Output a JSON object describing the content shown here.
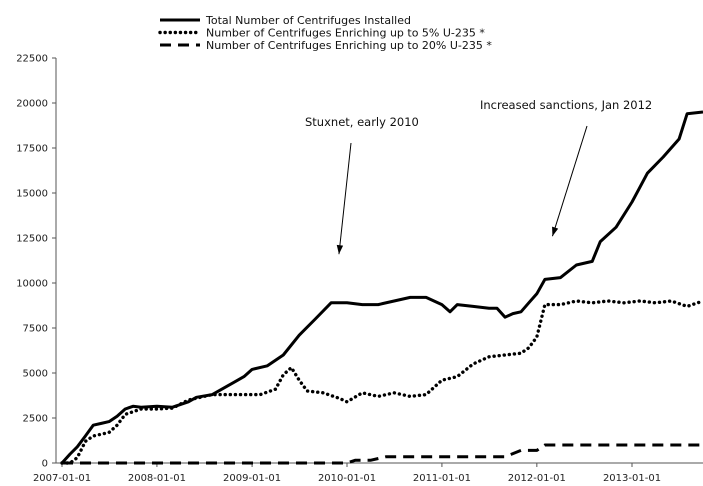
{
  "chart_data": {
    "type": "line",
    "title": "",
    "xlabel": "",
    "ylabel": "",
    "xlim": [
      "2007-01-01",
      "2013-10-01"
    ],
    "ylim": [
      0,
      22500
    ],
    "grid": false,
    "legend_position": "top-left",
    "x_tick_labels": [
      "2007-01-01",
      "2008-01-01",
      "2009-01-01",
      "2010-01-01",
      "2011-01-01",
      "2012-01-01",
      "2013-01-01"
    ],
    "y_tick_labels": [
      "0",
      "2500",
      "5000",
      "7500",
      "10000",
      "12500",
      "15000",
      "17500",
      "20000",
      "22500"
    ],
    "y_ticks": [
      0,
      2500,
      5000,
      7500,
      10000,
      12500,
      15000,
      17500,
      20000,
      22500
    ],
    "series": [
      {
        "name": "Total Number of Centrifuges Installed",
        "style": "solid",
        "color": "#000000",
        "points": [
          [
            "2007-01-01",
            0
          ],
          [
            "2007-02-01",
            500
          ],
          [
            "2007-03-01",
            900
          ],
          [
            "2007-04-01",
            1500
          ],
          [
            "2007-05-01",
            2100
          ],
          [
            "2007-06-01",
            2200
          ],
          [
            "2007-07-01",
            2300
          ],
          [
            "2007-08-01",
            2600
          ],
          [
            "2007-09-01",
            3000
          ],
          [
            "2007-10-01",
            3150
          ],
          [
            "2007-11-01",
            3100
          ],
          [
            "2008-01-01",
            3150
          ],
          [
            "2008-03-01",
            3100
          ],
          [
            "2008-05-01",
            3400
          ],
          [
            "2008-06-01",
            3650
          ],
          [
            "2008-08-01",
            3800
          ],
          [
            "2008-10-01",
            4300
          ],
          [
            "2008-12-01",
            4800
          ],
          [
            "2009-01-01",
            5200
          ],
          [
            "2009-03-01",
            5400
          ],
          [
            "2009-05-01",
            6000
          ],
          [
            "2009-07-01",
            7100
          ],
          [
            "2009-09-01",
            8000
          ],
          [
            "2009-11-01",
            8900
          ],
          [
            "2010-01-01",
            8900
          ],
          [
            "2010-03-01",
            8800
          ],
          [
            "2010-05-01",
            8800
          ],
          [
            "2010-07-01",
            9000
          ],
          [
            "2010-09-01",
            9200
          ],
          [
            "2010-11-01",
            9200
          ],
          [
            "2011-01-01",
            8800
          ],
          [
            "2011-02-01",
            8400
          ],
          [
            "2011-03-01",
            8800
          ],
          [
            "2011-05-01",
            8700
          ],
          [
            "2011-07-01",
            8600
          ],
          [
            "2011-08-01",
            8600
          ],
          [
            "2011-09-01",
            8100
          ],
          [
            "2011-10-01",
            8300
          ],
          [
            "2011-11-01",
            8400
          ],
          [
            "2011-12-01",
            8900
          ],
          [
            "2012-01-01",
            9400
          ],
          [
            "2012-02-01",
            10200
          ],
          [
            "2012-04-01",
            10300
          ],
          [
            "2012-06-01",
            11000
          ],
          [
            "2012-08-01",
            11200
          ],
          [
            "2012-09-01",
            12300
          ],
          [
            "2012-11-01",
            13100
          ],
          [
            "2013-01-01",
            14500
          ],
          [
            "2013-03-01",
            16100
          ],
          [
            "2013-05-01",
            17000
          ],
          [
            "2013-07-01",
            18000
          ],
          [
            "2013-08-01",
            19400
          ],
          [
            "2013-10-01",
            19500
          ]
        ]
      },
      {
        "name": "Number of Centrifuges Enriching up to 5% U-235 *",
        "style": "dotted",
        "color": "#000000",
        "points": [
          [
            "2007-01-01",
            0
          ],
          [
            "2007-02-01",
            0
          ],
          [
            "2007-03-01",
            300
          ],
          [
            "2007-04-01",
            1200
          ],
          [
            "2007-05-01",
            1500
          ],
          [
            "2007-06-01",
            1600
          ],
          [
            "2007-07-01",
            1700
          ],
          [
            "2007-08-01",
            2100
          ],
          [
            "2007-09-01",
            2700
          ],
          [
            "2007-11-01",
            3000
          ],
          [
            "2008-01-01",
            3000
          ],
          [
            "2008-03-01",
            3050
          ],
          [
            "2008-05-01",
            3500
          ],
          [
            "2008-08-01",
            3800
          ],
          [
            "2008-11-01",
            3800
          ],
          [
            "2009-02-01",
            3800
          ],
          [
            "2009-04-01",
            4100
          ],
          [
            "2009-05-01",
            4900
          ],
          [
            "2009-06-01",
            5300
          ],
          [
            "2009-07-01",
            4600
          ],
          [
            "2009-08-01",
            4000
          ],
          [
            "2009-10-01",
            3900
          ],
          [
            "2009-12-01",
            3600
          ],
          [
            "2010-01-01",
            3400
          ],
          [
            "2010-03-01",
            3900
          ],
          [
            "2010-05-01",
            3700
          ],
          [
            "2010-07-01",
            3900
          ],
          [
            "2010-09-01",
            3700
          ],
          [
            "2010-11-01",
            3800
          ],
          [
            "2011-01-01",
            4600
          ],
          [
            "2011-03-01",
            4800
          ],
          [
            "2011-05-01",
            5500
          ],
          [
            "2011-07-01",
            5900
          ],
          [
            "2011-09-01",
            6000
          ],
          [
            "2011-11-01",
            6100
          ],
          [
            "2011-12-01",
            6400
          ],
          [
            "2012-01-01",
            7000
          ],
          [
            "2012-02-01",
            8800
          ],
          [
            "2012-04-01",
            8800
          ],
          [
            "2012-06-01",
            9000
          ],
          [
            "2012-08-01",
            8900
          ],
          [
            "2012-10-01",
            9000
          ],
          [
            "2012-12-01",
            8900
          ],
          [
            "2013-02-01",
            9000
          ],
          [
            "2013-04-01",
            8900
          ],
          [
            "2013-06-01",
            9000
          ],
          [
            "2013-08-01",
            8700
          ],
          [
            "2013-10-01",
            9000
          ]
        ]
      },
      {
        "name": "Number of Centrifuges Enriching up to 20% U-235 *",
        "style": "dashed",
        "color": "#000000",
        "points": [
          [
            "2007-01-01",
            0
          ],
          [
            "2010-01-01",
            0
          ],
          [
            "2010-02-01",
            150
          ],
          [
            "2010-04-01",
            150
          ],
          [
            "2010-06-01",
            350
          ],
          [
            "2011-09-01",
            350
          ],
          [
            "2011-11-01",
            700
          ],
          [
            "2012-01-01",
            700
          ],
          [
            "2012-02-01",
            1000
          ],
          [
            "2013-10-01",
            1000
          ]
        ]
      }
    ],
    "annotations": [
      {
        "text": "Stuxnet, early 2010",
        "arrow_to": [
          "2009-12-01",
          11600
        ]
      },
      {
        "text": "Increased sanctions, Jan 2012",
        "arrow_to": [
          "2012-03-01",
          12600
        ]
      }
    ]
  }
}
